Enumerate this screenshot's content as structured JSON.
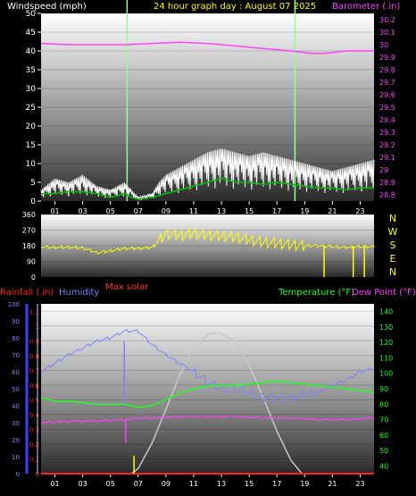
{
  "colors": {
    "background": "#000000",
    "wind_title": "#ffffff",
    "wind_avg": "#00c000",
    "baro": "#ff40ff",
    "direction": "#ffff00",
    "compass": "#ffff00",
    "rain": "#ff2020",
    "humidity": "#8080ff",
    "max_solar": "#ff3030",
    "temperature": "#20ff20",
    "dewpoint": "#ff40ff",
    "day_marker": "#90ff90",
    "solar": "#c8c8c8",
    "tick": "#ffffff"
  },
  "chart_data": [
    {
      "type": "line",
      "name": "wind-barometer",
      "title": "24 hour graph day : August 07 2025",
      "left_label": "Windspeed (mph)",
      "right_label": "Barometer (.in)",
      "x_ticks": [
        "01",
        "03",
        "05",
        "07",
        "09",
        "11",
        "13",
        "15",
        "17",
        "19",
        "21",
        "23"
      ],
      "xlim": [
        0,
        24
      ],
      "ylim_left": [
        0,
        50
      ],
      "yticks_left": [
        "0",
        "5",
        "10",
        "15",
        "20",
        "25",
        "30",
        "35",
        "40",
        "45",
        "50"
      ],
      "ylim_right": [
        28.75,
        30.25
      ],
      "yticks_right": [
        "28.8",
        "28.9",
        "29",
        "29.1",
        "29.2",
        "29.3",
        "29.4",
        "29.5",
        "29.6",
        "29.7",
        "29.8",
        "29.9",
        "30",
        "30.1",
        "30.2"
      ],
      "day_markers": [
        6.2,
        18.3
      ],
      "wind_gust_envelope": [
        [
          0,
          3
        ],
        [
          1,
          6
        ],
        [
          2,
          5
        ],
        [
          3,
          7
        ],
        [
          4,
          4
        ],
        [
          5,
          3
        ],
        [
          6,
          5
        ],
        [
          6.5,
          3
        ],
        [
          7,
          1
        ],
        [
          8,
          2
        ],
        [
          8.5,
          5
        ],
        [
          9,
          7
        ],
        [
          10,
          9
        ],
        [
          11,
          11
        ],
        [
          12,
          13
        ],
        [
          13,
          14
        ],
        [
          14,
          13
        ],
        [
          15,
          12
        ],
        [
          16,
          13
        ],
        [
          17,
          12
        ],
        [
          18,
          11
        ],
        [
          19,
          10
        ],
        [
          20,
          9
        ],
        [
          21,
          8
        ],
        [
          22,
          9
        ],
        [
          23,
          10
        ],
        [
          24,
          11
        ]
      ],
      "wind_avg": [
        [
          0,
          2
        ],
        [
          1,
          2
        ],
        [
          2,
          2.5
        ],
        [
          3,
          2.5
        ],
        [
          4,
          2
        ],
        [
          5,
          1
        ],
        [
          6,
          2
        ],
        [
          6.5,
          1
        ],
        [
          7,
          0.5
        ],
        [
          8,
          1
        ],
        [
          9,
          2
        ],
        [
          10,
          3
        ],
        [
          11,
          4
        ],
        [
          12,
          5
        ],
        [
          13,
          6
        ],
        [
          14,
          5
        ],
        [
          15,
          5
        ],
        [
          16,
          4.5
        ],
        [
          17,
          5
        ],
        [
          18,
          4.5
        ],
        [
          19,
          4
        ],
        [
          20,
          3.5
        ],
        [
          21,
          3.5
        ],
        [
          22,
          3
        ],
        [
          23,
          3.5
        ],
        [
          24,
          3.5
        ]
      ],
      "barometer": [
        [
          0,
          30.01
        ],
        [
          2,
          30.0
        ],
        [
          4,
          30.0
        ],
        [
          6,
          30.0
        ],
        [
          8,
          30.01
        ],
        [
          10,
          30.02
        ],
        [
          12,
          30.01
        ],
        [
          14,
          29.99
        ],
        [
          16,
          29.97
        ],
        [
          18,
          29.95
        ],
        [
          19.5,
          29.93
        ],
        [
          20.5,
          29.93
        ],
        [
          22,
          29.95
        ],
        [
          24,
          29.95
        ]
      ]
    },
    {
      "type": "line",
      "name": "wind-direction",
      "compass_labels": [
        "N",
        "W",
        "S",
        "E",
        "N"
      ],
      "yticks": [
        "0",
        "90",
        "180",
        "270",
        "360"
      ],
      "ylim": [
        0,
        360
      ],
      "x_ticks": [
        "01",
        "03",
        "05",
        "07",
        "09",
        "11",
        "13",
        "15",
        "17",
        "19",
        "21",
        "23"
      ],
      "xlim": [
        0,
        24
      ],
      "direction": [
        [
          0,
          175
        ],
        [
          1,
          170
        ],
        [
          2,
          172
        ],
        [
          3,
          168
        ],
        [
          4,
          140
        ],
        [
          5,
          150
        ],
        [
          6,
          165
        ],
        [
          7,
          165
        ],
        [
          8,
          170
        ],
        [
          8.5,
          210
        ],
        [
          9,
          250
        ],
        [
          10,
          240
        ],
        [
          11,
          250
        ],
        [
          12,
          240
        ],
        [
          13,
          235
        ],
        [
          14,
          230
        ],
        [
          15,
          215
        ],
        [
          16,
          200
        ],
        [
          17,
          195
        ],
        [
          18,
          185
        ],
        [
          19,
          180
        ],
        [
          20,
          180
        ],
        [
          21,
          175
        ],
        [
          22,
          170
        ],
        [
          23,
          175
        ],
        [
          24,
          175
        ]
      ],
      "drops": [
        20.4,
        22.5,
        23.3
      ]
    },
    {
      "type": "line",
      "name": "temperature-humidity",
      "rain_label": "Rainfall (.in)",
      "humidity_label": "Humidity",
      "solar_label": "Max solar",
      "temp_label": "Temperature (°F)",
      "dew_label": "Dew Point (°F)",
      "x_ticks": [
        "01",
        "03",
        "05",
        "07",
        "09",
        "11",
        "13",
        "15",
        "17",
        "19",
        "21",
        "23"
      ],
      "xlim": [
        0,
        24
      ],
      "ylim_humidity": [
        0,
        100
      ],
      "yticks_humidity": [
        "0",
        "10",
        "20",
        "30",
        "40",
        "50",
        "60",
        "70",
        "80",
        "90",
        "100"
      ],
      "ylim_rain": [
        0,
        1.15
      ],
      "yticks_rain": [
        "0",
        "0.1",
        "0.2",
        "0.3",
        "0.4",
        "0.5",
        "0.6",
        "0.7",
        "0.8",
        "0.9",
        "1",
        "1.1"
      ],
      "ylim_temp": [
        35,
        145
      ],
      "yticks_temp": [
        "40",
        "50",
        "60",
        "70",
        "80",
        "90",
        "100",
        "110",
        "120",
        "130",
        "140"
      ],
      "humidity": [
        [
          0,
          60
        ],
        [
          1,
          65
        ],
        [
          2,
          70
        ],
        [
          3,
          74
        ],
        [
          4,
          78
        ],
        [
          5,
          80
        ],
        [
          6,
          84
        ],
        [
          7,
          84
        ],
        [
          8,
          76
        ],
        [
          9,
          70
        ],
        [
          10,
          65
        ],
        [
          11,
          60
        ],
        [
          12,
          54
        ],
        [
          13,
          50
        ],
        [
          14,
          50
        ],
        [
          15,
          48
        ],
        [
          16,
          45
        ],
        [
          17,
          45
        ],
        [
          18,
          44
        ],
        [
          19,
          47
        ],
        [
          20,
          48
        ],
        [
          21,
          52
        ],
        [
          22,
          55
        ],
        [
          23,
          60
        ],
        [
          24,
          62
        ]
      ],
      "temperature": [
        [
          0,
          84
        ],
        [
          1,
          82
        ],
        [
          2,
          82
        ],
        [
          3,
          81
        ],
        [
          4,
          80
        ],
        [
          5,
          80
        ],
        [
          6,
          80
        ],
        [
          7,
          78
        ],
        [
          8,
          79
        ],
        [
          9,
          83
        ],
        [
          10,
          87
        ],
        [
          11,
          90
        ],
        [
          12,
          92
        ],
        [
          13,
          92
        ],
        [
          14,
          92
        ],
        [
          15,
          93
        ],
        [
          16,
          94
        ],
        [
          17,
          95
        ],
        [
          18,
          94
        ],
        [
          19,
          93
        ],
        [
          20,
          92
        ],
        [
          21,
          91
        ],
        [
          22,
          90
        ],
        [
          23,
          89
        ],
        [
          24,
          88
        ]
      ],
      "dewpoint": [
        [
          0,
          68
        ],
        [
          2,
          69
        ],
        [
          4,
          69
        ],
        [
          6,
          70
        ],
        [
          7,
          71
        ],
        [
          8,
          71
        ],
        [
          10,
          72
        ],
        [
          12,
          72
        ],
        [
          14,
          72
        ],
        [
          16,
          71
        ],
        [
          18,
          71
        ],
        [
          20,
          70
        ],
        [
          22,
          70
        ],
        [
          24,
          71
        ]
      ],
      "solar": [
        [
          6.5,
          0
        ],
        [
          7,
          3
        ],
        [
          8,
          18
        ],
        [
          9,
          38
        ],
        [
          10,
          58
        ],
        [
          11,
          74
        ],
        [
          12,
          82
        ],
        [
          12.8,
          83
        ],
        [
          14,
          78
        ],
        [
          15,
          64
        ],
        [
          16,
          45
        ],
        [
          17,
          25
        ],
        [
          18,
          8
        ],
        [
          18.8,
          0
        ]
      ],
      "rain": [
        [
          0,
          0
        ],
        [
          24,
          0
        ]
      ]
    }
  ]
}
